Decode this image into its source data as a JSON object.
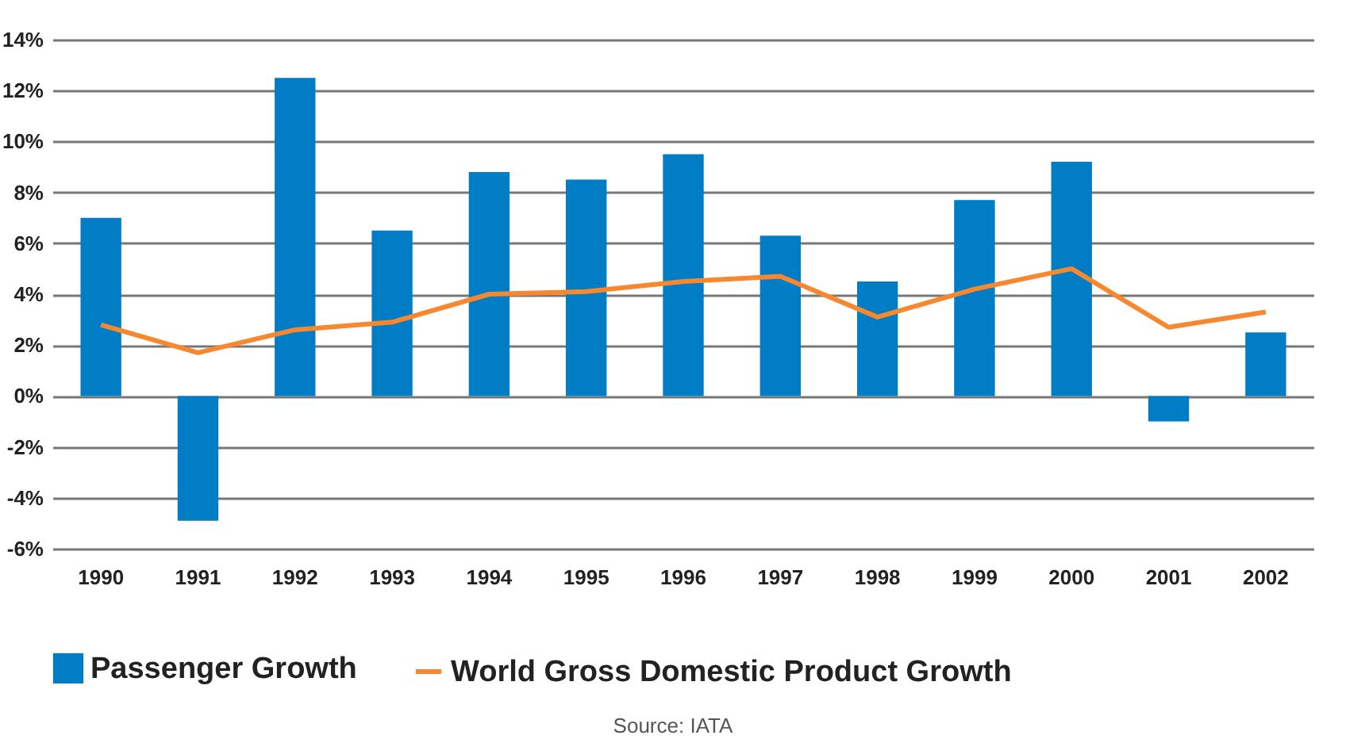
{
  "chart_data": {
    "type": "bar",
    "categories": [
      "1990",
      "1991",
      "1992",
      "1993",
      "1994",
      "1995",
      "1996",
      "1997",
      "1998",
      "1999",
      "2000",
      "2001",
      "2002"
    ],
    "series": [
      {
        "name": "Passenger Growth",
        "type": "bar",
        "color": "#007dc5",
        "values": [
          7.0,
          -4.9,
          12.5,
          6.5,
          8.8,
          8.5,
          9.5,
          6.3,
          4.5,
          7.7,
          9.2,
          -1.0,
          2.5
        ]
      },
      {
        "name": "World Gross Domestic Product Growth",
        "type": "line",
        "color": "#f7882f",
        "values": [
          2.8,
          1.7,
          2.6,
          2.9,
          4.0,
          4.1,
          4.5,
          4.7,
          3.1,
          4.2,
          5.0,
          2.7,
          3.3
        ]
      }
    ],
    "ylim": [
      -6,
      14
    ],
    "yticks": [
      {
        "value": -6,
        "label": "-6%"
      },
      {
        "value": -4,
        "label": "-4%"
      },
      {
        "value": -2,
        "label": "-2%"
      },
      {
        "value": 0,
        "label": "0%"
      },
      {
        "value": 2,
        "label": "2%"
      },
      {
        "value": 4,
        "label": "4%"
      },
      {
        "value": 6,
        "label": "6%"
      },
      {
        "value": 8,
        "label": "8%"
      },
      {
        "value": 10,
        "label": "10%"
      },
      {
        "value": 12,
        "label": "12%"
      },
      {
        "value": 14,
        "label": "14%"
      }
    ],
    "grid": "y",
    "legend": "bottom",
    "annotations": [
      "Source: IATA"
    ]
  }
}
